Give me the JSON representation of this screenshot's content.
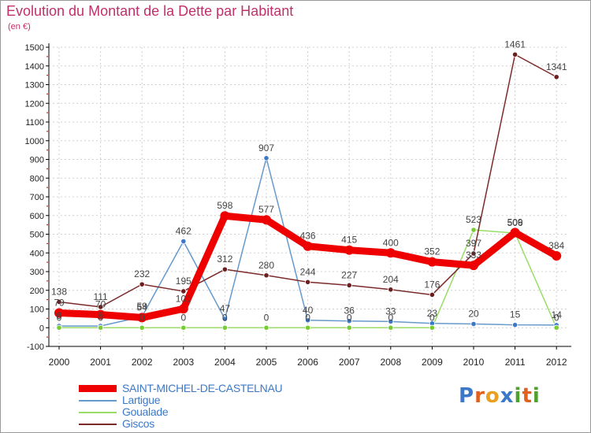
{
  "title": "Evolution du Montant de la Dette par Habitant",
  "subtitle": "(en €)",
  "logo": "Proxiti",
  "colors": {
    "title": "#c0306a",
    "grid": "#cccccc",
    "axis": "#000000",
    "tick_red": "#cc0000",
    "legend_text": "#3c78c8"
  },
  "chart_data": {
    "type": "line",
    "title": "Evolution du Montant de la Dette par Habitant",
    "ylabel": "(en €)",
    "xlabel": "",
    "x": [
      "2000",
      "2001",
      "2002",
      "2003",
      "2004",
      "2005",
      "2006",
      "2007",
      "2008",
      "2009",
      "2010",
      "2011",
      "2012"
    ],
    "ylim": [
      -100,
      1500
    ],
    "yticks": [
      -100,
      0,
      100,
      200,
      300,
      400,
      500,
      600,
      700,
      800,
      900,
      1000,
      1100,
      1200,
      1300,
      1400,
      1500
    ],
    "grid": true,
    "series": [
      {
        "name": "SAINT-MICHEL-DE-CASTELNAU",
        "color": "#ee0000",
        "marker_color": "#ee0000",
        "values": [
          79,
          70,
          54,
          101,
          598,
          577,
          436,
          415,
          400,
          352,
          333,
          509,
          384
        ],
        "labels": [
          "79",
          "70",
          "54",
          "101",
          "598",
          "577",
          "436",
          "415",
          "400",
          "352",
          "333",
          "509",
          "384"
        ]
      },
      {
        "name": "Lartigue",
        "color": "#6699cc",
        "marker_color": "#3c78c8",
        "values": [
          9,
          9,
          59,
          462,
          47,
          907,
          40,
          36,
          33,
          23,
          20,
          15,
          14
        ],
        "labels": [
          "9",
          "9",
          "59",
          "462",
          "47",
          "907",
          "40",
          "36",
          "33",
          "23",
          "20",
          "15",
          "14"
        ]
      },
      {
        "name": "Goualade",
        "color": "#99dd66",
        "marker_color": "#77cc33",
        "values": [
          0,
          0,
          0,
          0,
          0,
          0,
          0,
          0,
          0,
          0,
          523,
          506,
          0
        ],
        "labels": [
          "0",
          "0",
          "0",
          "0",
          "0",
          "0",
          "0",
          "0",
          "0",
          "0",
          "523",
          "506",
          "0"
        ]
      },
      {
        "name": "Giscos",
        "color": "#7b2a2a",
        "marker_color": "#6b1f1f",
        "values": [
          138,
          111,
          232,
          195,
          312,
          280,
          244,
          227,
          204,
          176,
          397,
          1461,
          1341
        ],
        "labels": [
          "138",
          "111",
          "232",
          "195",
          "312",
          "280",
          "244",
          "227",
          "204",
          "176",
          "397",
          "1461",
          "1341"
        ]
      }
    ]
  }
}
